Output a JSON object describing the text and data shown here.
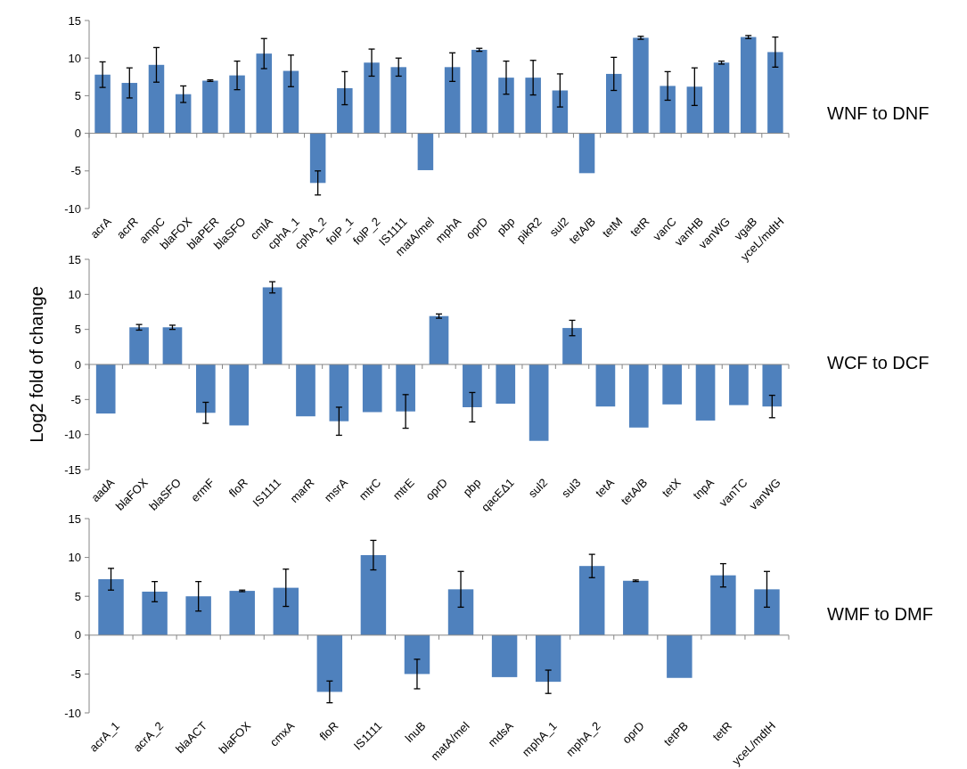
{
  "chart_data": [
    {
      "type": "bar",
      "annotations": [
        "WNF to DNF"
      ],
      "color": "#4f81bd",
      "ylim": [
        -10,
        15
      ],
      "yticks": [
        -10,
        -5,
        0,
        5,
        10,
        15
      ],
      "categories": [
        "acrA",
        "acrR",
        "ampC",
        "blaFOX",
        "blaPER",
        "blaSFO",
        "cmlA",
        "cphA_1",
        "cphA_2",
        "folP_1",
        "folP_2",
        "IS1111",
        "matA/mel",
        "mphA",
        "oprD",
        "pbp",
        "pikR2",
        "sul2",
        "tetA/B",
        "tetM",
        "tetR",
        "vanC",
        "vanHB",
        "vanWG",
        "vgaB",
        "yceL/mdtH"
      ],
      "values": [
        7.8,
        6.7,
        9.1,
        5.2,
        7.0,
        7.7,
        10.6,
        8.3,
        -6.6,
        6.0,
        9.4,
        8.8,
        -4.9,
        8.8,
        11.1,
        7.4,
        7.4,
        5.7,
        -5.3,
        7.9,
        12.7,
        6.3,
        6.2,
        9.4,
        12.8,
        10.8
      ],
      "errors": [
        1.7,
        2.0,
        2.3,
        1.1,
        0.1,
        1.9,
        2.0,
        2.1,
        1.6,
        2.2,
        1.8,
        1.2,
        null,
        1.9,
        0.2,
        2.2,
        2.3,
        2.2,
        null,
        2.2,
        0.2,
        1.9,
        2.5,
        0.2,
        0.2,
        2.0
      ]
    },
    {
      "type": "bar",
      "annotations": [
        "WCF to DCF"
      ],
      "ylabel": "Log2 fold of change",
      "color": "#4f81bd",
      "ylim": [
        -15,
        15
      ],
      "yticks": [
        -15,
        -10,
        -5,
        0,
        5,
        10,
        15
      ],
      "categories": [
        "aadA",
        "blaFOX",
        "blaSFO",
        "ermF",
        "floR",
        "IS1111",
        "marR",
        "msrA",
        "mtrC",
        "mtrE",
        "oprD",
        "pbp",
        "qacEΔ1",
        "sul2",
        "sul3",
        "tetA",
        "tetA/B",
        "tetX",
        "tnpA",
        "vanTC",
        "vanWG"
      ],
      "values": [
        -7.0,
        5.3,
        5.3,
        -6.9,
        -8.7,
        11.0,
        -7.4,
        -8.1,
        -6.8,
        -6.7,
        6.9,
        -6.1,
        -5.6,
        -10.9,
        5.2,
        -6.0,
        -9.0,
        -5.7,
        -8.0,
        -5.8,
        -6.0
      ],
      "errors": [
        null,
        0.4,
        0.3,
        1.5,
        null,
        0.8,
        null,
        2.0,
        null,
        2.4,
        0.3,
        2.1,
        null,
        null,
        1.1,
        null,
        null,
        null,
        null,
        null,
        1.6
      ]
    },
    {
      "type": "bar",
      "annotations": [
        "WMF to DMF"
      ],
      "color": "#4f81bd",
      "ylim": [
        -10,
        15
      ],
      "yticks": [
        -10,
        -5,
        0,
        5,
        10,
        15
      ],
      "categories": [
        "acrA_1",
        "acrA_2",
        "blaACT",
        "blaFOX",
        "cmxA",
        "floR",
        "IS1111",
        "lnuB",
        "matA/mel",
        "mdsA",
        "mphA_1",
        "mphA_2",
        "oprD",
        "tetPB",
        "tetR",
        "yceL/mdtH"
      ],
      "values": [
        7.2,
        5.6,
        5.0,
        5.7,
        6.1,
        -7.3,
        10.3,
        -5.0,
        5.9,
        -5.4,
        -6.0,
        8.9,
        7.0,
        -5.5,
        7.7,
        5.9
      ],
      "errors": [
        1.4,
        1.3,
        1.9,
        0.1,
        2.4,
        1.4,
        1.9,
        1.9,
        2.3,
        null,
        1.5,
        1.5,
        0.1,
        null,
        1.5,
        2.3
      ]
    }
  ]
}
